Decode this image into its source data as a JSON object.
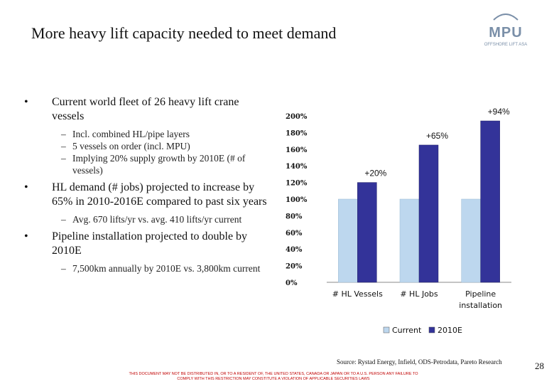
{
  "title": "More heavy lift capacity needed to meet demand",
  "logo": {
    "main": "MPU",
    "sub": "OFFSHORE LIFT ASA"
  },
  "bullets": [
    {
      "text": "Current world fleet of 26 heavy lift crane vessels",
      "sub": [
        "Incl. combined HL/pipe layers",
        "5 vessels on order (incl. MPU)",
        "Implying 20% supply growth by 2010E (# of vessels)"
      ]
    },
    {
      "text": "HL demand (# jobs) projected to increase by 65% in 2010-2016E compared to past six years",
      "sub": [
        "Avg. 670 lifts/yr vs. avg. 410 lifts/yr current"
      ]
    },
    {
      "text": "Pipeline installation projected to double by 2010E",
      "sub": [
        "7,500km annually by 2010E vs. 3,800km current"
      ]
    }
  ],
  "chart_data": {
    "type": "bar",
    "categories": [
      "# HL Vessels",
      "# HL Jobs",
      "Pipeline installation"
    ],
    "series": [
      {
        "name": "Current",
        "values": [
          100,
          100,
          100
        ],
        "color": "#bdd7ee"
      },
      {
        "name": "2010E",
        "values": [
          120,
          165,
          194
        ],
        "color": "#333399"
      }
    ],
    "data_labels": [
      "+20%",
      "+65%",
      "+94%"
    ],
    "yticks": [
      "0%",
      "20%",
      "40%",
      "60%",
      "80%",
      "100%",
      "120%",
      "140%",
      "160%",
      "180%",
      "200%"
    ],
    "ylim": [
      0,
      200
    ],
    "legend_position": "bottom"
  },
  "source": "Source: Rystad Energy, Infield, ODS-Petrodata, Pareto Research",
  "page_number": "28",
  "disclaimer": "THIS DOCUMENT MAY NOT BE DISTRIBUTED IN, OR TO A RESIDENT OF, THE UNITED STATES, CANADA OR JAPAN OR TO A U.S. PERSON ANY FAILURE TO COMPLY WITH THIS RESTRICTION MAY CONSTITUTE A VIOLATION OF APPLICABLE SECURITIES LAWS"
}
